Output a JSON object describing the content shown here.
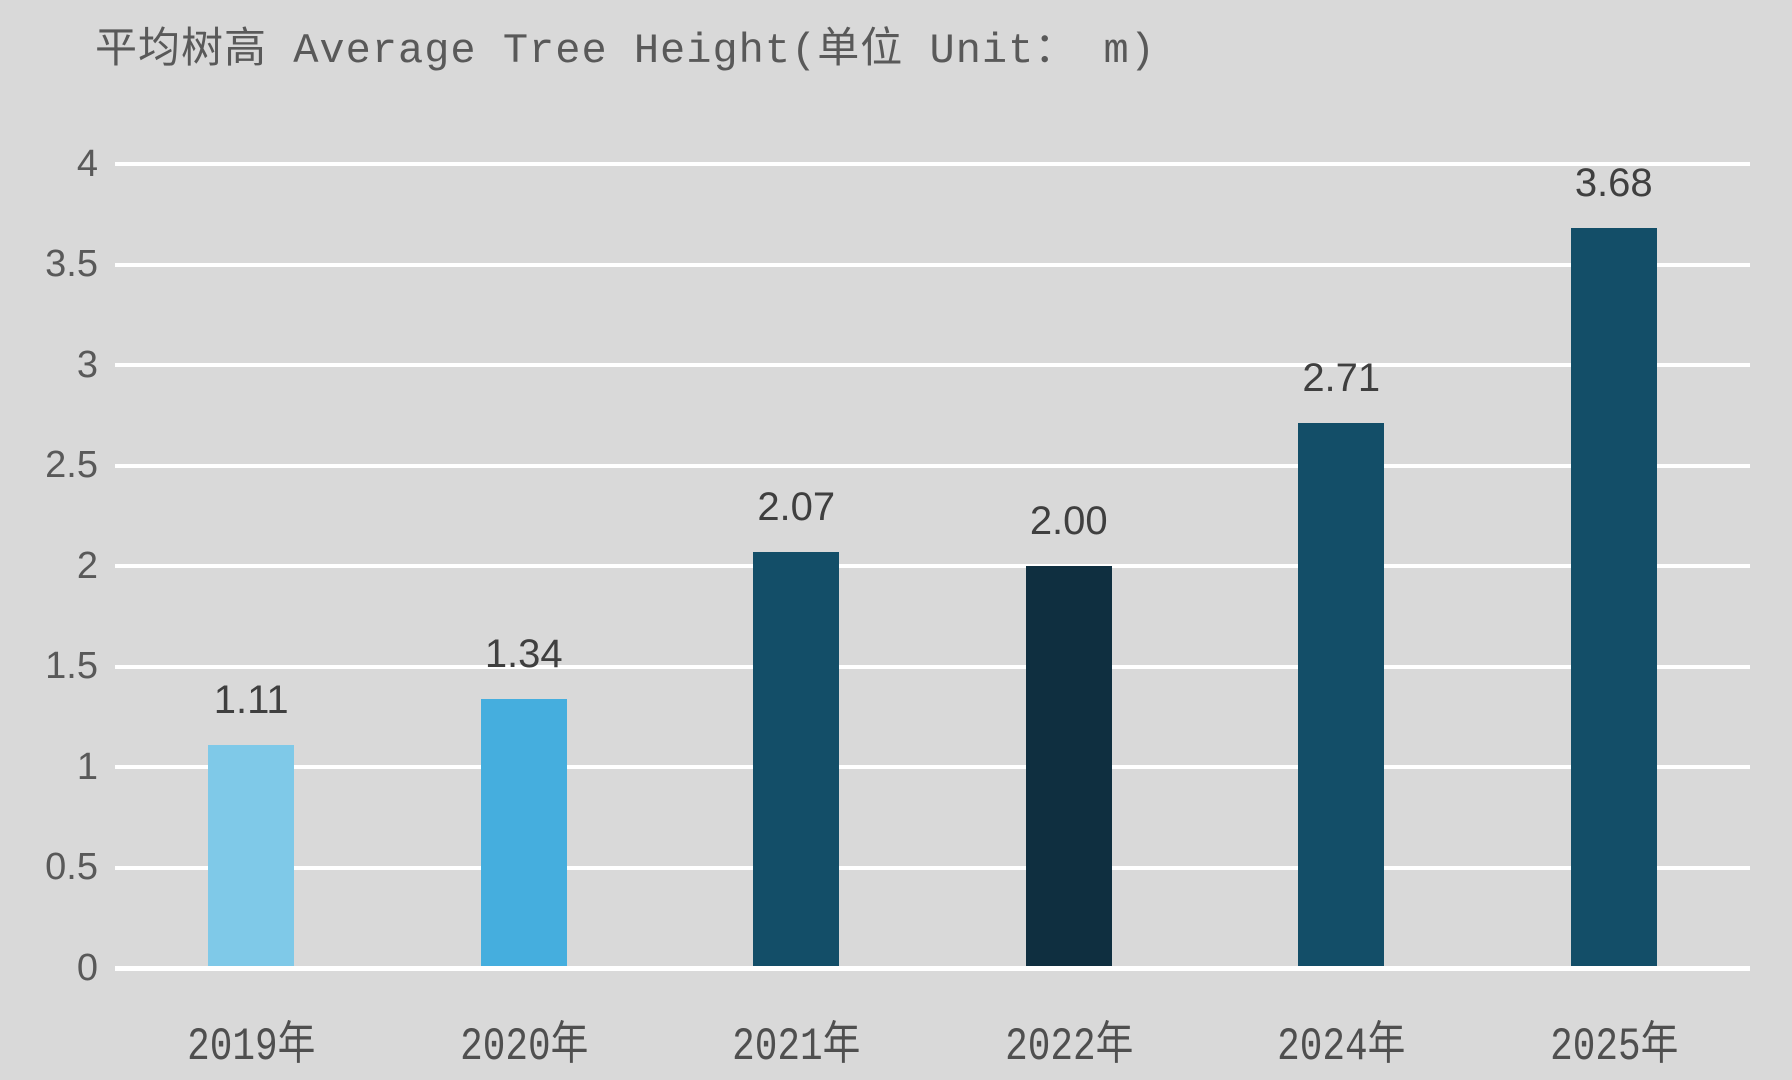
{
  "page": {
    "background": "#d9d9d9"
  },
  "chart_data": {
    "type": "bar",
    "title": "平均树高 Average Tree Height(单位 Unit： m)",
    "categories": [
      "2019年",
      "2020年",
      "2021年",
      "2022年",
      "2024年",
      "2025年"
    ],
    "values": [
      1.11,
      1.34,
      2.07,
      2.0,
      2.71,
      3.68
    ],
    "value_labels": [
      "1.11",
      "1.34",
      "2.07",
      "2.00",
      "2.71",
      "3.68"
    ],
    "bar_colors": [
      "#7fc9e8",
      "#45aede",
      "#134e68",
      "#0f2f40",
      "#134e68",
      "#134e68"
    ],
    "y_ticks": [
      0,
      0.5,
      1,
      1.5,
      2,
      2.5,
      3,
      3.5,
      4
    ],
    "y_tick_labels": [
      "0",
      "0.5",
      "1",
      "1.5",
      "2",
      "2.5",
      "3",
      "3.5",
      "4"
    ],
    "ylim": [
      0,
      4
    ],
    "xlabel": "",
    "ylabel": "",
    "grid": true,
    "gridline_color": "#ffffff",
    "legend_position": "none",
    "colors": {
      "background": "#d9d9d9",
      "title_text": "#595959",
      "axis_text": "#595959",
      "x_axis_text": "#4f4f4f",
      "value_label_text": "#3f3f3f"
    }
  }
}
